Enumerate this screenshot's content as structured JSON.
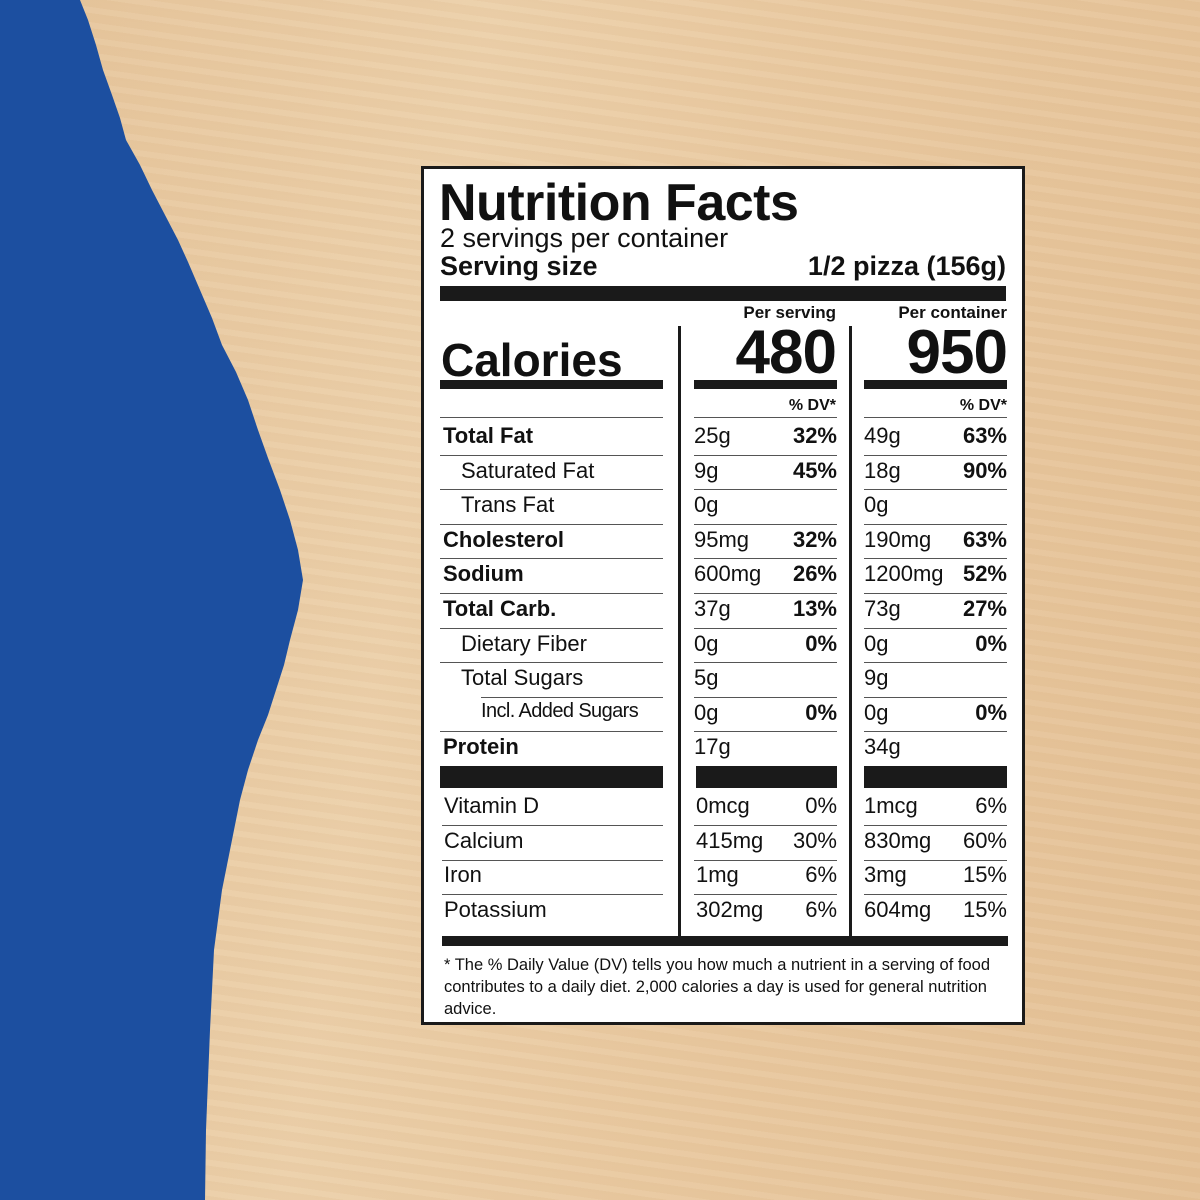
{
  "colors": {
    "background_wood": "#e8c9a0",
    "torn_paper_blue": "#1c4fa0",
    "label_ink": "#1a1a1a"
  },
  "label": {
    "title": "Nutrition Facts",
    "servings_per_container": "2 servings per container",
    "serving_size_label": "Serving size",
    "serving_size_value": "1/2 pizza (156g)",
    "per_serving_header": "Per serving",
    "per_container_header": "Per container",
    "calories_label": "Calories",
    "calories_per_serving": "480",
    "calories_per_container": "950",
    "dv_header": "% DV*",
    "nutrients": [
      {
        "name": "Total Fat",
        "bold": true,
        "indent": 0,
        "serving_amount": "25g",
        "serving_dv": "32%",
        "container_amount": "49g",
        "container_dv": "63%"
      },
      {
        "name": "Saturated Fat",
        "bold": false,
        "indent": 1,
        "serving_amount": "9g",
        "serving_dv": "45%",
        "container_amount": "18g",
        "container_dv": "90%"
      },
      {
        "name": "Trans Fat",
        "bold": false,
        "indent": 1,
        "serving_amount": "0g",
        "serving_dv": "",
        "container_amount": "0g",
        "container_dv": ""
      },
      {
        "name": "Cholesterol",
        "bold": true,
        "indent": 0,
        "serving_amount": "95mg",
        "serving_dv": "32%",
        "container_amount": "190mg",
        "container_dv": "63%"
      },
      {
        "name": "Sodium",
        "bold": true,
        "indent": 0,
        "serving_amount": "600mg",
        "serving_dv": "26%",
        "container_amount": "1200mg",
        "container_dv": "52%"
      },
      {
        "name": "Total Carb.",
        "bold": true,
        "indent": 0,
        "serving_amount": "37g",
        "serving_dv": "13%",
        "container_amount": "73g",
        "container_dv": "27%"
      },
      {
        "name": "Dietary Fiber",
        "bold": false,
        "indent": 1,
        "serving_amount": "0g",
        "serving_dv": "0%",
        "container_amount": "0g",
        "container_dv": "0%"
      },
      {
        "name": "Total Sugars",
        "bold": false,
        "indent": 1,
        "serving_amount": "5g",
        "serving_dv": "",
        "container_amount": "9g",
        "container_dv": ""
      },
      {
        "name": "Incl. Added Sugars",
        "bold": false,
        "indent": 2,
        "serving_amount": "0g",
        "serving_dv": "0%",
        "container_amount": "0g",
        "container_dv": "0%"
      },
      {
        "name": "Protein",
        "bold": true,
        "indent": 0,
        "serving_amount": "17g",
        "serving_dv": "",
        "container_amount": "34g",
        "container_dv": ""
      }
    ],
    "vitamins": [
      {
        "name": "Vitamin D",
        "serving_amount": "0mcg",
        "serving_dv": "0%",
        "container_amount": "1mcg",
        "container_dv": "6%"
      },
      {
        "name": "Calcium",
        "serving_amount": "415mg",
        "serving_dv": "30%",
        "container_amount": "830mg",
        "container_dv": "60%"
      },
      {
        "name": "Iron",
        "serving_amount": "1mg",
        "serving_dv": "6%",
        "container_amount": "3mg",
        "container_dv": "15%"
      },
      {
        "name": "Potassium",
        "serving_amount": "302mg",
        "serving_dv": "6%",
        "container_amount": "604mg",
        "container_dv": "15%"
      }
    ],
    "footnote": "* The % Daily Value (DV) tells you how much a nutrient in a serving of food contributes to a daily diet. 2,000 calories a day is used for general nutrition advice."
  }
}
